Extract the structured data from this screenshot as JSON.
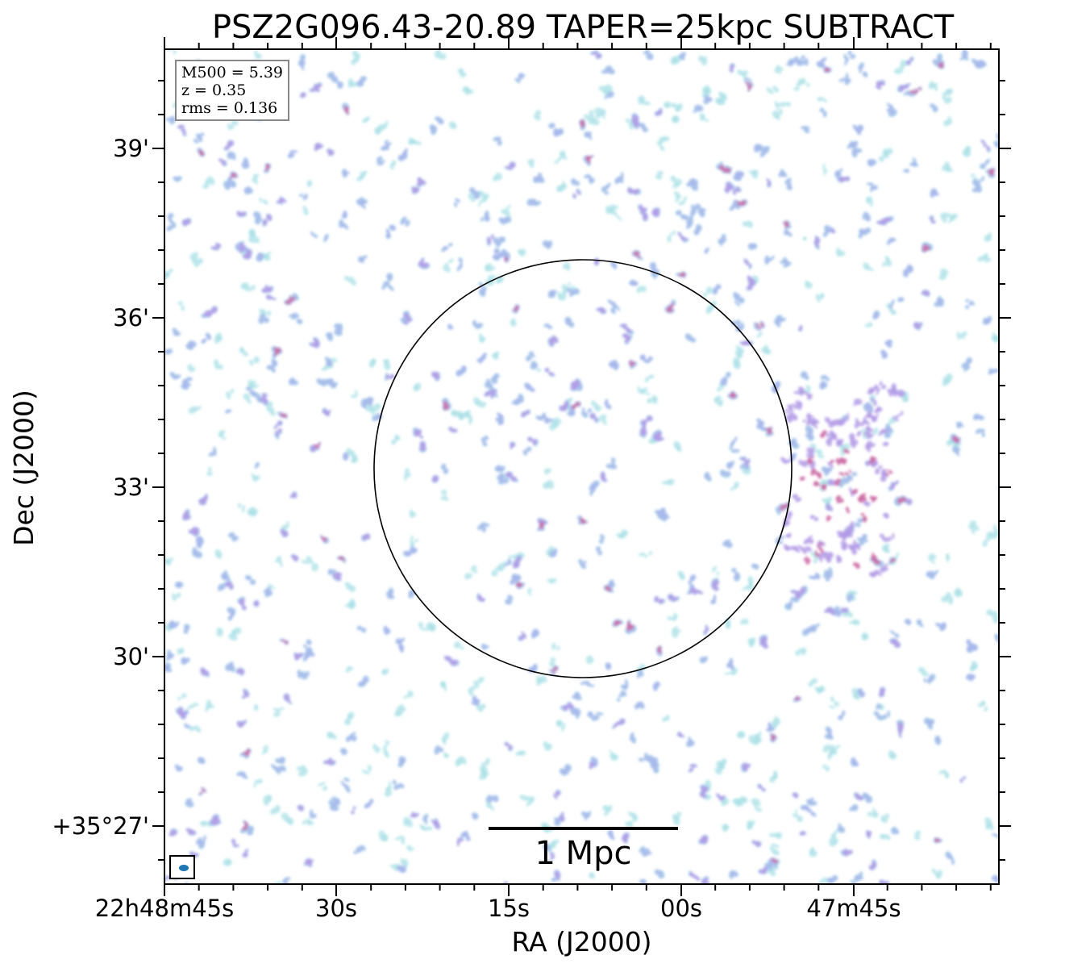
{
  "title": "PSZ2G096.43-20.89 TAPER=25kpc SUBTRACT",
  "info": {
    "mass": "M500 = 5.39",
    "redshift": "z = 0.35",
    "rms": "rms = 0.136"
  },
  "scalebar_label": "1 Mpc",
  "axes": {
    "xlabel": "RA (J2000)",
    "ylabel": "Dec (J2000)",
    "xticks": [
      "22h48m45s",
      "30s",
      "15s",
      "00s",
      "47m45s"
    ],
    "yticks": [
      "39'",
      "36'",
      "33'",
      "30'",
      "+35°27'"
    ]
  },
  "colors": {
    "noise_low": "#a9e0e6",
    "noise_mid": "#a8b8ec",
    "noise_high": "#b39be6",
    "noise_peak": "#cc6aa4",
    "beam": "#1f77b4"
  }
}
